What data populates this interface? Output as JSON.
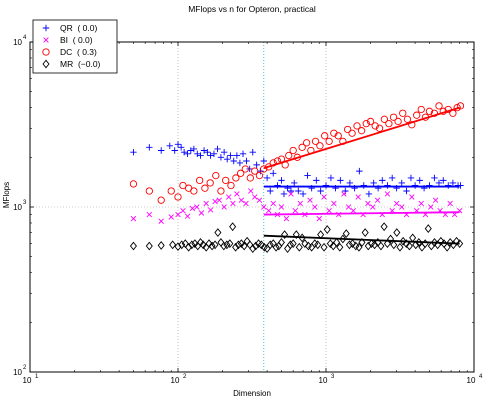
{
  "chart_data": {
    "type": "scatter",
    "title": "MFlops vs n for Opteron, practical",
    "xlabel": "Dimension",
    "ylabel": "MFlops",
    "xscale": "log",
    "yscale": "log",
    "xlim": [
      10,
      10000
    ],
    "ylim": [
      100,
      10000
    ],
    "grid": "dotted at decades",
    "legend_position": "top-left",
    "x_ticks": [
      {
        "base": "10",
        "exp": "1"
      },
      {
        "base": "10",
        "exp": "2"
      },
      {
        "base": "10",
        "exp": "3"
      },
      {
        "base": "10",
        "exp": "4"
      }
    ],
    "y_ticks": [
      {
        "base": "10",
        "exp": "2"
      },
      {
        "base": "10",
        "exp": "3"
      },
      {
        "base": "10",
        "exp": "4"
      }
    ],
    "annotations": [
      {
        "type": "vline",
        "x": 380,
        "color": "#00aaaa",
        "style": "dotted"
      }
    ],
    "series": [
      {
        "name": "QR",
        "legend_label": "QR  ( 0.0)",
        "marker": "plus",
        "color": "#0000ff",
        "x": [
          50,
          64,
          77,
          88,
          95,
          100,
          105,
          110,
          116,
          122,
          128,
          135,
          142,
          150,
          158,
          166,
          175,
          185,
          195,
          205,
          215,
          226,
          238,
          250,
          262,
          275,
          290,
          305,
          320,
          340,
          360,
          380,
          400,
          420,
          440,
          470,
          500,
          520,
          550,
          580,
          610,
          650,
          700,
          750,
          800,
          860,
          920,
          1000,
          1080,
          1160,
          1250,
          1350,
          1450,
          1560,
          1680,
          1800,
          1950,
          2100,
          2250,
          2400,
          2600,
          2800,
          3000,
          3250,
          3500,
          3750,
          4000,
          4300,
          4600,
          5000,
          5400,
          5800,
          6200,
          6700,
          7200,
          7800,
          8100
        ],
        "y": [
          2150,
          2300,
          2200,
          2350,
          2200,
          2400,
          2300,
          2150,
          2100,
          2200,
          2250,
          2100,
          2050,
          2200,
          2150,
          2050,
          2100,
          2250,
          2000,
          2150,
          1950,
          2050,
          1900,
          2050,
          1850,
          2100,
          1900,
          1700,
          2150,
          1800,
          1650,
          1900,
          1500,
          1250,
          1600,
          1350,
          1450,
          1200,
          1300,
          1250,
          1400,
          1250,
          1200,
          1550,
          1300,
          1450,
          1250,
          1350,
          1500,
          1300,
          1450,
          1250,
          1400,
          1300,
          1650,
          1350,
          1200,
          1400,
          1300,
          1450,
          1350,
          1500,
          1300,
          1400,
          1250,
          1500,
          1350,
          1450,
          1300,
          1350,
          1500,
          1400,
          1450,
          1350,
          1400,
          1350,
          1350
        ],
        "fit": {
          "x": [
            380,
            8000
          ],
          "y": [
            1330,
            1330
          ]
        }
      },
      {
        "name": "BI",
        "legend_label": "BI  ( 0.0)",
        "marker": "x",
        "color": "#ff00ff",
        "x": [
          50,
          64,
          77,
          90,
          100,
          108,
          116,
          125,
          134,
          144,
          155,
          166,
          178,
          190,
          205,
          220,
          235,
          250,
          268,
          288,
          310,
          330,
          355,
          380,
          410,
          440,
          470,
          500,
          540,
          580,
          620,
          670,
          720,
          780,
          840,
          900,
          970,
          1050,
          1130,
          1220,
          1320,
          1420,
          1530,
          1650,
          1780,
          1920,
          2070,
          2230,
          2400,
          2600,
          2800,
          3000,
          3250,
          3500,
          3800,
          4100,
          4400,
          4700,
          5100,
          5500,
          5900,
          6400,
          6900,
          7400,
          8000
        ],
        "y": [
          850,
          900,
          820,
          870,
          900,
          950,
          880,
          980,
          1000,
          920,
          1050,
          960,
          1080,
          1100,
          1000,
          1150,
          1050,
          1200,
          1100,
          1050,
          1250,
          1150,
          1100,
          1000,
          950,
          1050,
          900,
          1000,
          850,
          1200,
          950,
          1050,
          900,
          1100,
          1000,
          850,
          1150,
          950,
          1050,
          900,
          1200,
          1000,
          950,
          1150,
          900,
          1050,
          1000,
          1100,
          900,
          1200,
          950,
          1050,
          1000,
          900,
          1150,
          950,
          1050,
          900,
          1000,
          1100,
          950,
          900,
          1050,
          900,
          950
        ],
        "fit": {
          "x": [
            380,
            8000
          ],
          "y": [
            900,
            930
          ]
        }
      },
      {
        "name": "DC",
        "legend_label": "DC  ( 0.3)",
        "marker": "circle",
        "color": "#ff0000",
        "x": [
          50,
          64,
          77,
          90,
          100,
          108,
          118,
          128,
          140,
          152,
          165,
          180,
          195,
          210,
          228,
          246,
          265,
          285,
          308,
          330,
          355,
          380,
          410,
          440,
          470,
          500,
          530,
          560,
          600,
          640,
          690,
          740,
          790,
          850,
          910,
          980,
          1050,
          1130,
          1210,
          1300,
          1400,
          1500,
          1620,
          1740,
          1870,
          2000,
          2150,
          2300,
          2480,
          2660,
          2860,
          3070,
          3300,
          3550,
          3800,
          4100,
          4400,
          4700,
          5000,
          5400,
          5800,
          6200,
          6700,
          7200,
          7700,
          8100
        ],
        "y": [
          1380,
          1250,
          1100,
          1250,
          1150,
          1350,
          1300,
          1250,
          1450,
          1300,
          1400,
          1550,
          1250,
          1450,
          1350,
          1500,
          1600,
          1700,
          1500,
          1650,
          1550,
          1700,
          1750,
          1850,
          1900,
          1950,
          1800,
          2050,
          2200,
          2000,
          2300,
          2450,
          2200,
          2500,
          2350,
          2700,
          2500,
          2800,
          2700,
          2500,
          2950,
          2800,
          3100,
          2900,
          3200,
          3300,
          3100,
          3000,
          3400,
          3200,
          3500,
          3300,
          3700,
          3400,
          3150,
          3600,
          3900,
          3500,
          3800,
          3700,
          4100,
          3800,
          3900,
          3700,
          4000,
          4100
        ],
        "fit": {
          "x": [
            380,
            8000
          ],
          "y": [
            1720,
            4000
          ]
        }
      },
      {
        "name": "MR",
        "legend_label": "MR  (−0.0)",
        "marker": "diamond",
        "color": "#000000",
        "x": [
          50,
          64,
          77,
          92,
          100,
          106,
          112,
          118,
          124,
          130,
          136,
          142,
          148,
          155,
          162,
          170,
          178,
          186,
          195,
          204,
          214,
          224,
          234,
          245,
          256,
          268,
          280,
          293,
          306,
          320,
          335,
          350,
          366,
          383,
          400,
          420,
          440,
          460,
          480,
          500,
          525,
          550,
          575,
          600,
          630,
          660,
          690,
          720,
          760,
          800,
          840,
          880,
          920,
          970,
          1020,
          1070,
          1120,
          1180,
          1240,
          1300,
          1370,
          1440,
          1510,
          1590,
          1670,
          1750,
          1840,
          1930,
          2030,
          2130,
          2240,
          2350,
          2470,
          2600,
          2730,
          2870,
          3010,
          3160,
          3320,
          3490,
          3660,
          3850,
          4040,
          4240,
          4450,
          4680,
          4910,
          5150,
          5410,
          5680,
          5970,
          6270,
          6580,
          6910,
          7260,
          7620,
          8000
        ],
        "y": [
          580,
          580,
          585,
          590,
          575,
          590,
          600,
          570,
          590,
          600,
          580,
          610,
          590,
          570,
          600,
          580,
          590,
          700,
          610,
          580,
          590,
          600,
          760,
          570,
          590,
          600,
          580,
          620,
          590,
          560,
          580,
          600,
          590,
          570,
          560,
          590,
          600,
          570,
          580,
          610,
          680,
          560,
          590,
          600,
          680,
          570,
          650,
          600,
          580,
          570,
          600,
          590,
          680,
          570,
          730,
          600,
          580,
          610,
          570,
          640,
          690,
          590,
          600,
          580,
          570,
          610,
          700,
          580,
          600,
          590,
          610,
          580,
          760,
          600,
          640,
          590,
          700,
          570,
          620,
          600,
          580,
          650,
          590,
          610,
          570,
          600,
          740,
          580,
          610,
          590,
          620,
          600,
          570,
          610,
          590,
          620,
          600
        ],
        "fit": {
          "x": [
            380,
            8000
          ],
          "y": [
            670,
            600
          ]
        }
      }
    ]
  }
}
